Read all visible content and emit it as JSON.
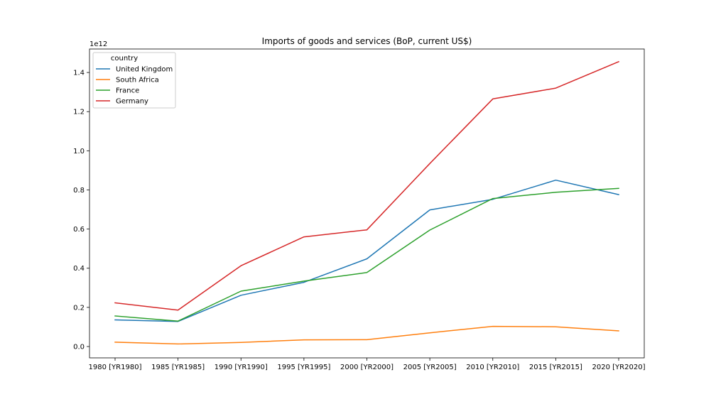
{
  "chart_data": {
    "type": "line",
    "title": "Imports of goods and services (BoP, current US$)",
    "xlabel": "",
    "ylabel": "",
    "y_offset_label": "1e12",
    "categories": [
      "1980 [YR1980]",
      "1985 [YR1985]",
      "1990 [YR1990]",
      "1995 [YR1995]",
      "2000 [YR2000]",
      "2005 [YR2005]",
      "2010 [YR2010]",
      "2015 [YR2015]",
      "2020 [YR2020]"
    ],
    "y_ticks": [
      0.0,
      0.2,
      0.4,
      0.6,
      0.8,
      1.0,
      1.2,
      1.4
    ],
    "y_tick_labels": [
      "0.0",
      "0.2",
      "0.4",
      "0.6",
      "0.8",
      "1.0",
      "1.2",
      "1.4"
    ],
    "ylim": [
      -0.058,
      1.52
    ],
    "grid": false,
    "legend": {
      "title": "country",
      "placement": "top-left"
    },
    "series": [
      {
        "name": "United Kingdom",
        "color": "#1f77b4",
        "values": [
          0.136,
          0.128,
          0.262,
          0.328,
          0.448,
          0.698,
          0.752,
          0.85,
          0.776
        ]
      },
      {
        "name": "South Africa",
        "color": "#ff7f0e",
        "values": [
          0.022,
          0.013,
          0.021,
          0.034,
          0.035,
          0.07,
          0.103,
          0.101,
          0.08
        ]
      },
      {
        "name": "France",
        "color": "#2ca02c",
        "values": [
          0.156,
          0.13,
          0.283,
          0.334,
          0.378,
          0.595,
          0.756,
          0.788,
          0.808
        ]
      },
      {
        "name": "Germany",
        "color": "#d62728",
        "values": [
          0.223,
          0.186,
          0.413,
          0.56,
          0.596,
          0.935,
          1.265,
          1.32,
          1.455
        ]
      }
    ]
  }
}
